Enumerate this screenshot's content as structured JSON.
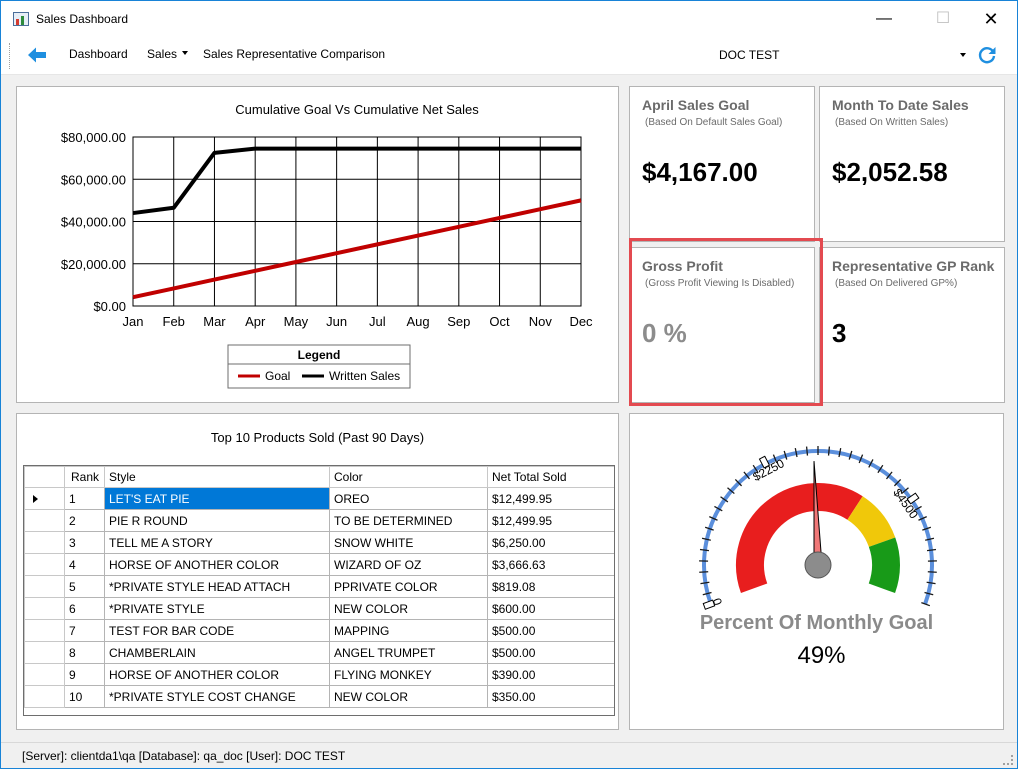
{
  "window": {
    "title": "Sales Dashboard"
  },
  "toolbar": {
    "dashboard": "Dashboard",
    "sales": "Sales",
    "comparison": "Sales Representative Comparison",
    "doc_selected": "DOC TEST"
  },
  "cards": {
    "april": {
      "title": "April Sales Goal",
      "subtitle": "(Based On Default Sales Goal)",
      "value": "$4,167.00"
    },
    "mtd": {
      "title": "Month To Date Sales",
      "subtitle": "(Based On Written Sales)",
      "value": "$2,052.58"
    },
    "gp": {
      "title": "Gross Profit",
      "subtitle": "(Gross Profit Viewing Is Disabled)",
      "value": "0 %"
    },
    "rank": {
      "title": "Representative GP Rank",
      "subtitle": "(Based On Delivered GP%)",
      "value": "3"
    }
  },
  "chart_data": {
    "type": "line",
    "title": "Cumulative Goal Vs Cumulative Net Sales",
    "categories": [
      "Jan",
      "Feb",
      "Mar",
      "Apr",
      "May",
      "Jun",
      "Jul",
      "Aug",
      "Sep",
      "Oct",
      "Nov",
      "Dec"
    ],
    "ylim": [
      0,
      80000
    ],
    "yticks": [
      0,
      20000,
      40000,
      60000,
      80000
    ],
    "ytick_labels": [
      "$0.00",
      "$20,000.00",
      "$40,000.00",
      "$60,000.00",
      "$80,000.00"
    ],
    "grid": true,
    "legend_title": "Legend",
    "legend_placement": "bottom-center",
    "series": [
      {
        "name": "Goal",
        "color": "#c00000",
        "values": [
          4167,
          8334,
          12501,
          16668,
          20835,
          25002,
          29169,
          33336,
          37503,
          41670,
          45837,
          50004
        ]
      },
      {
        "name": "Written Sales",
        "color": "#000000",
        "values": [
          44000,
          46500,
          72500,
          74500,
          74500,
          74500,
          74500,
          74500,
          74500,
          74500,
          74500,
          74500
        ]
      }
    ]
  },
  "products": {
    "title": "Top 10 Products Sold (Past 90 Days)",
    "columns": [
      "Rank",
      "Style",
      "Color",
      "Net Total Sold"
    ],
    "rows": [
      [
        "1",
        "LET'S EAT PIE",
        "OREO",
        "$12,499.95"
      ],
      [
        "2",
        "PIE R ROUND",
        "TO BE DETERMINED",
        "$12,499.95"
      ],
      [
        "3",
        "TELL ME A STORY",
        "SNOW WHITE",
        "$6,250.00"
      ],
      [
        "4",
        "HORSE OF ANOTHER COLOR",
        "WIZARD OF OZ",
        "$3,666.63"
      ],
      [
        "5",
        "*PRIVATE STYLE  HEAD ATTACH",
        "PPRIVATE COLOR",
        "$819.08"
      ],
      [
        "6",
        "*PRIVATE STYLE",
        "NEW COLOR",
        "$600.00"
      ],
      [
        "7",
        "TEST FOR BAR CODE",
        "MAPPING",
        "$500.00"
      ],
      [
        "8",
        "CHAMBERLAIN",
        "ANGEL TRUMPET",
        "$500.00"
      ],
      [
        "9",
        "HORSE OF ANOTHER COLOR",
        "FLYING MONKEY",
        "$390.00"
      ],
      [
        "10",
        "*PRIVATE STYLE COST CHANGE",
        "NEW COLOR",
        "$350.00"
      ]
    ]
  },
  "gauge": {
    "min": 0,
    "max": 6000,
    "value_fraction": 0.49,
    "tick_labels": [
      "0",
      "$2250",
      "$4500"
    ],
    "tick_values": [
      0,
      2250,
      4500
    ],
    "caption": "Percent Of Monthly Goal",
    "value_text": "49%",
    "bands": [
      {
        "from": 0,
        "to": 0.65,
        "color": "#e81e1e"
      },
      {
        "from": 0.65,
        "to": 0.82,
        "color": "#f0c80a"
      },
      {
        "from": 0.82,
        "to": 1.0,
        "color": "#189a18"
      }
    ],
    "scale_color": "#5b8fdc",
    "needle_color": "#f07878",
    "hub_color": "#8c8c8c"
  },
  "status": {
    "text": "[Server]: clientda1\\qa  [Database]: qa_doc  [User]: DOC TEST"
  }
}
